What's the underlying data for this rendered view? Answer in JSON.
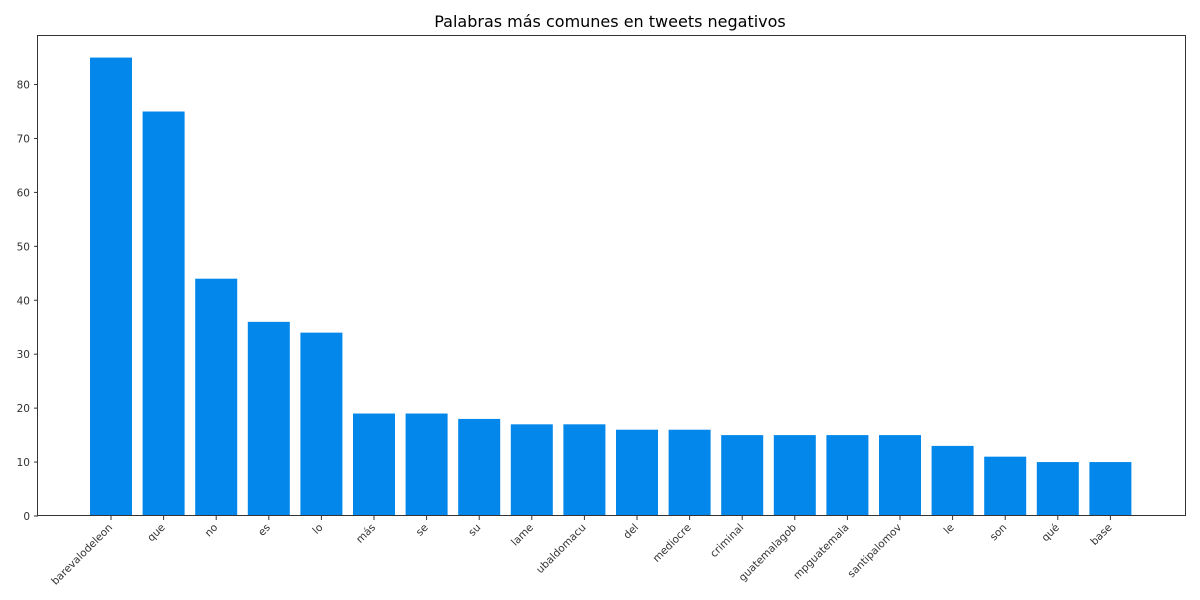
{
  "chart_data": {
    "type": "bar",
    "title": "Palabras más comunes en tweets negativos",
    "xlabel": "",
    "ylabel": "",
    "categories": [
      "barevalodeleon",
      "que",
      "no",
      "es",
      "lo",
      "más",
      "se",
      "su",
      "lame",
      "ubaldomacu",
      "del",
      "mediocre",
      "criminal",
      "guatemalagob",
      "mpguatemala",
      "santipalomov",
      "le",
      "son",
      "qué",
      "base"
    ],
    "values": [
      85,
      75,
      44,
      36,
      34,
      19,
      19,
      18,
      17,
      17,
      16,
      16,
      15,
      15,
      15,
      15,
      13,
      11,
      10,
      10
    ],
    "ylim": [
      0,
      89
    ],
    "yticks": [
      0,
      10,
      20,
      30,
      40,
      50,
      60,
      70,
      80
    ],
    "bar_color": "#0387eb",
    "grid": false,
    "legend": "none"
  }
}
